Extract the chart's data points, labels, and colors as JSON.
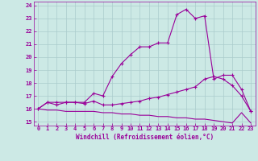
{
  "xlabel": "Windchill (Refroidissement éolien,°C)",
  "xlim": [
    -0.5,
    23.5
  ],
  "ylim": [
    14.7,
    24.3
  ],
  "yticks": [
    15,
    16,
    17,
    18,
    19,
    20,
    21,
    22,
    23,
    24
  ],
  "xticks": [
    0,
    1,
    2,
    3,
    4,
    5,
    6,
    7,
    8,
    9,
    10,
    11,
    12,
    13,
    14,
    15,
    16,
    17,
    18,
    19,
    20,
    21,
    22,
    23
  ],
  "background_color": "#cce9e5",
  "line_color": "#990099",
  "grid_color": "#aacccc",
  "line1_x": [
    0,
    1,
    2,
    3,
    4,
    5,
    6,
    7,
    8,
    9,
    10,
    11,
    12,
    13,
    14,
    15,
    16,
    17,
    18,
    19,
    20,
    21,
    22,
    23
  ],
  "line1_y": [
    16.0,
    16.5,
    16.5,
    16.5,
    16.5,
    16.5,
    17.2,
    17.0,
    18.5,
    19.5,
    20.2,
    20.8,
    20.8,
    21.1,
    21.1,
    23.3,
    23.7,
    23.0,
    23.2,
    18.3,
    18.6,
    18.6,
    17.5,
    15.8
  ],
  "line2_x": [
    0,
    1,
    2,
    3,
    4,
    5,
    6,
    7,
    8,
    9,
    10,
    11,
    12,
    13,
    14,
    15,
    16,
    17,
    18,
    19,
    20,
    21,
    22,
    23
  ],
  "line2_y": [
    16.0,
    16.5,
    16.3,
    16.5,
    16.5,
    16.4,
    16.6,
    16.3,
    16.3,
    16.4,
    16.5,
    16.6,
    16.8,
    16.9,
    17.1,
    17.3,
    17.5,
    17.7,
    18.3,
    18.5,
    18.3,
    17.8,
    17.0,
    15.8
  ],
  "line3_x": [
    0,
    1,
    2,
    3,
    4,
    5,
    6,
    7,
    8,
    9,
    10,
    11,
    12,
    13,
    14,
    15,
    16,
    17,
    18,
    19,
    20,
    21,
    22,
    23
  ],
  "line3_y": [
    16.0,
    15.9,
    15.9,
    15.8,
    15.8,
    15.8,
    15.8,
    15.7,
    15.7,
    15.6,
    15.6,
    15.5,
    15.5,
    15.4,
    15.4,
    15.3,
    15.3,
    15.2,
    15.2,
    15.1,
    15.0,
    14.9,
    15.7,
    14.9
  ]
}
